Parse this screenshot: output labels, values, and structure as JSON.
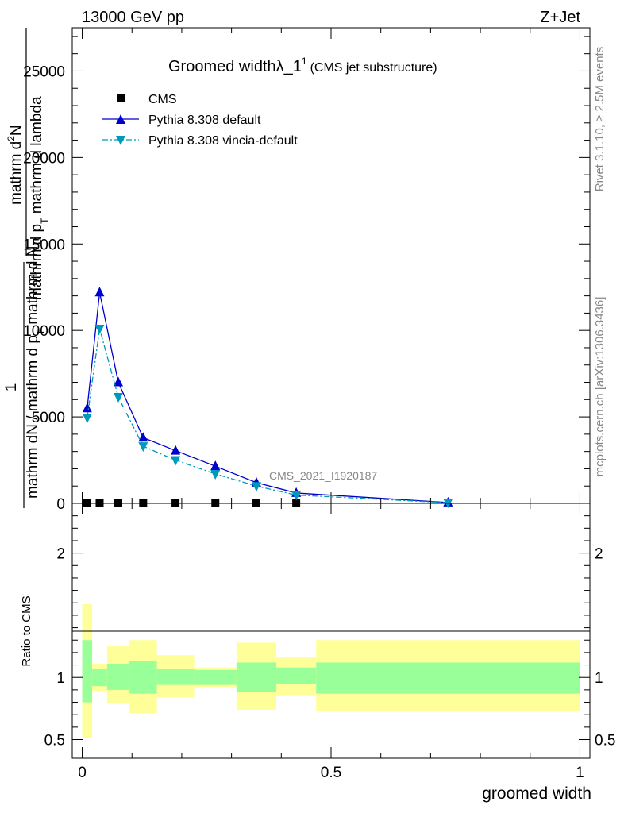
{
  "header": {
    "energy": "13000 GeV pp",
    "process": "Z+Jet"
  },
  "side_labels": {
    "rivet": "Rivet 3.1.10, ≥ 2.5M events",
    "mcplots": "mcplots.cern.ch [arXiv:1306.3436]"
  },
  "chart_data": [
    {
      "type": "line",
      "title_main": "Groomed widthλ_1",
      "title_sup": "1",
      "title_sub": "(CMS jet substructure)",
      "analysis_tag": "CMS_2021_I1920187",
      "ylabel": {
        "numerator": "1",
        "frac_num_a": "mathrm d",
        "frac_num_b": "2",
        "frac_num_c": "N",
        "frac_den_a": "mathrm d p",
        "frac_den_b": "T",
        "frac_den_c": " mathrm d lambda",
        "outer_den_a": "mathrm dN / mathrm d p",
        "outer_den_b": "T",
        "outer_den_c": "mathrm d N"
      },
      "ylim": [
        0,
        27500
      ],
      "yticks": [
        0,
        5000,
        10000,
        15000,
        20000,
        25000
      ],
      "ytick_labels": [
        "0",
        "5000",
        "10000",
        "15000",
        "20000",
        "25000"
      ],
      "xlim": [
        -0.02,
        1.02
      ],
      "legend": [
        {
          "name": "CMS",
          "color": "#000000",
          "marker": "square"
        },
        {
          "name": "Pythia 8.308 default",
          "color": "#0000cc",
          "marker": "triangle-up"
        },
        {
          "name": "Pythia 8.308 vincia-default",
          "color": "#0099bb",
          "marker": "triangle-down"
        }
      ],
      "series": [
        {
          "name": "CMS",
          "x": [
            0.01,
            0.035,
            0.0725,
            0.1225,
            0.1875,
            0.2675,
            0.35,
            0.43
          ],
          "y": [
            0,
            0,
            0,
            0,
            0,
            0,
            0,
            0
          ]
        },
        {
          "name": "Pythia 8.308 default",
          "x": [
            0.01,
            0.035,
            0.0725,
            0.1225,
            0.1875,
            0.2675,
            0.35,
            0.43,
            0.735
          ],
          "y": [
            5500,
            12200,
            7000,
            3800,
            3050,
            2150,
            1200,
            600,
            50
          ]
        },
        {
          "name": "Pythia 8.308 vincia-default",
          "x": [
            0.01,
            0.035,
            0.0725,
            0.1225,
            0.1875,
            0.2675,
            0.35,
            0.43,
            0.735
          ],
          "y": [
            4950,
            10100,
            6150,
            3300,
            2500,
            1700,
            1000,
            480,
            40
          ]
        }
      ]
    },
    {
      "type": "area",
      "ylabel": "Ratio to CMS",
      "xlabel": "groomed width",
      "ylim": [
        0.35,
        2.4
      ],
      "yticks": [
        0.5,
        1,
        2
      ],
      "ytick_labels": [
        "0.5",
        "1",
        "2"
      ],
      "xlim": [
        -0.02,
        1.02
      ],
      "xticks": [
        0,
        0.5,
        1
      ],
      "xtick_labels": [
        "0",
        "0.5",
        "1"
      ],
      "colors": {
        "inner": "#99ff99",
        "outer": "#ffff99"
      },
      "bins": [
        {
          "x0": 0.0,
          "x1": 0.02,
          "inner": [
            0.8,
            1.3
          ],
          "outer": [
            0.51,
            1.59
          ]
        },
        {
          "x0": 0.02,
          "x1": 0.05,
          "inner": [
            0.93,
            1.07
          ],
          "outer": [
            0.89,
            1.11
          ]
        },
        {
          "x0": 0.05,
          "x1": 0.095,
          "inner": [
            0.9,
            1.11
          ],
          "outer": [
            0.79,
            1.25
          ]
        },
        {
          "x0": 0.095,
          "x1": 0.15,
          "inner": [
            0.87,
            1.13
          ],
          "outer": [
            0.71,
            1.3
          ]
        },
        {
          "x0": 0.15,
          "x1": 0.225,
          "inner": [
            0.94,
            1.07
          ],
          "outer": [
            0.84,
            1.18
          ]
        },
        {
          "x0": 0.225,
          "x1": 0.31,
          "inner": [
            0.94,
            1.06
          ],
          "outer": [
            0.92,
            1.08
          ]
        },
        {
          "x0": 0.31,
          "x1": 0.39,
          "inner": [
            0.88,
            1.12
          ],
          "outer": [
            0.74,
            1.28
          ]
        },
        {
          "x0": 0.39,
          "x1": 0.47,
          "inner": [
            0.95,
            1.08
          ],
          "outer": [
            0.85,
            1.16
          ]
        },
        {
          "x0": 0.47,
          "x1": 1.0,
          "inner": [
            0.87,
            1.12
          ],
          "outer": [
            0.73,
            1.3
          ]
        }
      ]
    }
  ]
}
